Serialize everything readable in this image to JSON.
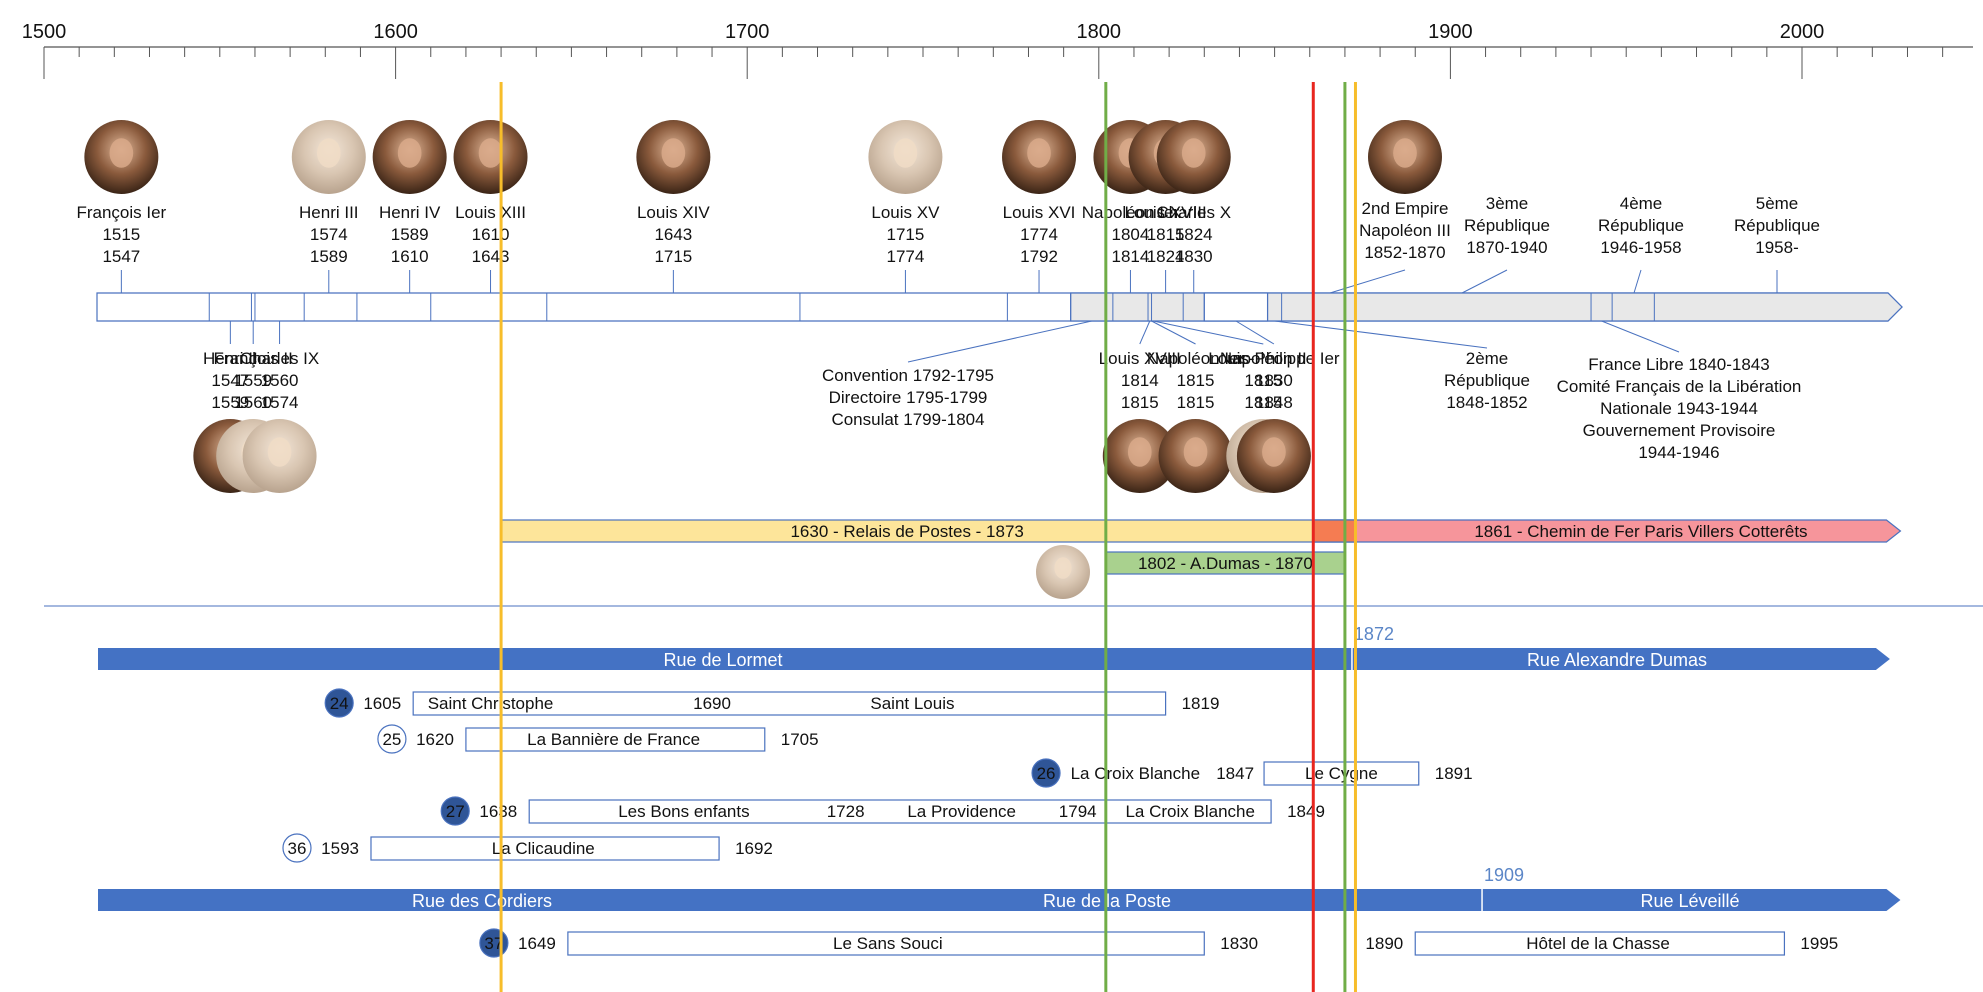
{
  "axis": {
    "ticks": [
      "1500",
      "1600",
      "1700",
      "1800",
      "1900",
      "2000"
    ]
  },
  "colors": {
    "blue": "#4472c4",
    "outline": "#4a72bf",
    "grey_fill": "#e8e8e8",
    "yellow_fill": "#fde59a",
    "yellow_line": "#f7bd2a",
    "red_fill": "#f6959b",
    "red_line": "#e8261f",
    "orange_fill": "#f57c52",
    "green_fill": "#a9d18e",
    "green_line": "#70ad47"
  },
  "vertical_lines": [
    {
      "x": 1630,
      "color": "#f7bd2a"
    },
    {
      "x": 1802,
      "color": "#70ad47"
    },
    {
      "x": 1861,
      "color": "#e8261f"
    },
    {
      "x": 1870,
      "color": "#70ad47"
    },
    {
      "x": 1873,
      "color": "#f7bd2a"
    }
  ],
  "rulers_top": [
    {
      "name": "François Ier",
      "d1": "1515",
      "d2": "1547",
      "year": 1522
    },
    {
      "name": "Henri III",
      "d1": "1574",
      "d2": "1589",
      "year": 1581
    },
    {
      "name": "Henri IV",
      "d1": "1589",
      "d2": "1610",
      "year": 1604
    },
    {
      "name": "Louis XIII",
      "d1": "1610",
      "d2": "1643",
      "year": 1627
    },
    {
      "name": "Louis XIV",
      "d1": "1643",
      "d2": "1715",
      "year": 1679
    },
    {
      "name": "Louis XV",
      "d1": "1715",
      "d2": "1774",
      "year": 1745
    },
    {
      "name": "Louis XVI",
      "d1": "1774",
      "d2": "1792",
      "year": 1783
    },
    {
      "name": "Napoléon Ier",
      "d1": "1804",
      "d2": "1814",
      "year": 1809
    },
    {
      "name": "Louis XVIII",
      "d1": "1815",
      "d2": "1824",
      "year": 1819
    },
    {
      "name": "Charles X",
      "d1": "1824",
      "d2": "1830",
      "year": 1827
    }
  ],
  "rulers_bottom": [
    {
      "name": "Henri II",
      "d1": "1547",
      "d2": "1559",
      "year": 1553
    },
    {
      "name": "François II",
      "d1": "1559",
      "d2": "1560",
      "year": 1559.5
    },
    {
      "name": "Charles IX",
      "d1": "1560",
      "d2": "1574",
      "year": 1567
    },
    {
      "name": "Louis XVIII",
      "d1": "1814",
      "d2": "1815",
      "year": 1814.5
    },
    {
      "name": "Napoléon Ier",
      "d1": "1815",
      "d2": "1815",
      "year": 1815
    },
    {
      "name": "Napoléon II",
      "d1": "1815",
      "d2": "1815",
      "year": 1815.5
    },
    {
      "name": "Louis-Philippe Ier",
      "d1": "1830",
      "d2": "1848",
      "year": 1839
    }
  ],
  "regimes_top": [
    {
      "l1": "2nd Empire",
      "l2": "Napoléon III",
      "l3": "1852-1870"
    },
    {
      "l1": "3ème",
      "l2": "République",
      "l3": "1870-1940"
    },
    {
      "l1": "4ème",
      "l2": "République",
      "l3": "1946-1958"
    },
    {
      "l1": "5ème",
      "l2": "République",
      "l3": "1958-"
    }
  ],
  "regimes_bottom": [
    {
      "lines": [
        "Convention 1792-1795",
        "Directoire 1795-1799",
        "Consulat 1799-1804"
      ]
    },
    {
      "lines": [
        "2ème",
        "République",
        "1848-1852"
      ]
    },
    {
      "lines": [
        "France Libre 1840-1843",
        "Comité Français de la Libération",
        "Nationale 1943-1944",
        "Gouvernement Provisoire",
        "1944-1946"
      ]
    }
  ],
  "reign_bar": {
    "start": 1515,
    "end": 2028,
    "dividers": [
      1547,
      1559,
      1560,
      1574,
      1589,
      1610,
      1643,
      1715,
      1774,
      1792,
      1804,
      1814,
      1815,
      1824,
      1830,
      1848,
      1852,
      1870,
      1940,
      1946,
      1958
    ],
    "grey_from": 1792
  },
  "bars": {
    "relais": {
      "label": "1630 - Relais de Postes - 1873",
      "start": 1630,
      "end": 1873
    },
    "chemin": {
      "label": "1861 - Chemin de Fer Paris  Villers Cotterêts",
      "start": 1861,
      "end": 2028
    },
    "dumas": {
      "label": "1802 - A.Dumas - 1870",
      "start": 1802,
      "end": 1870
    }
  },
  "streets": [
    {
      "from": 1515,
      "to": 2025,
      "split": "1872",
      "split_year": 1872,
      "left": "Rue de Lormet",
      "right": "Rue Alexandre Dumas"
    },
    {
      "from": 1515,
      "to": 2028,
      "split": "1909",
      "split_year": 1909,
      "left_a": "Rue des Cordiers",
      "left_b": "Rue de la Poste",
      "right": "Rue Léveillé"
    }
  ],
  "houses": [
    {
      "num": "24",
      "filled": true,
      "start": "1605",
      "end": "1819",
      "start_y": 1605,
      "end_y": 1819,
      "segs": [
        {
          "t": "Saint Christophe",
          "y": 1627
        },
        {
          "t": "1690",
          "y": 1690
        },
        {
          "t": "Saint Louis",
          "y": 1747
        }
      ]
    },
    {
      "num": "25",
      "filled": false,
      "start": "1620",
      "end": "1705",
      "start_y": 1620,
      "end_y": 1705,
      "segs": [
        {
          "t": "La Bannière de France",
          "y": 1662
        }
      ]
    },
    {
      "num": "26",
      "filled": true,
      "prefix": "La Croix Blanche",
      "start": "1847",
      "end": "1891",
      "start_y": 1847,
      "end_y": 1891,
      "segs": [
        {
          "t": "Le Cygne",
          "y": 1869
        }
      ]
    },
    {
      "num": "27",
      "filled": true,
      "start": "1638",
      "end": "1849",
      "start_y": 1638,
      "end_y": 1849,
      "segs": [
        {
          "t": "Les Bons enfants",
          "y": 1682
        },
        {
          "t": "1728",
          "y": 1728
        },
        {
          "t": "La Providence",
          "y": 1761
        },
        {
          "t": "1794",
          "y": 1794
        },
        {
          "t": "La Croix Blanche",
          "y": 1826
        }
      ]
    },
    {
      "num": "36",
      "filled": false,
      "start": "1593",
      "end": "1692",
      "start_y": 1593,
      "end_y": 1692,
      "segs": [
        {
          "t": "La Clicaudine",
          "y": 1642
        }
      ]
    },
    {
      "num": "37",
      "filled": true,
      "start": "1649",
      "end": "1830",
      "start_y": 1649,
      "end_y": 1830,
      "segs": [
        {
          "t": "Le Sans Souci",
          "y": 1740
        }
      ]
    },
    {
      "num": "",
      "filled": false,
      "start": "1890",
      "end": "1995",
      "start_y": 1890,
      "end_y": 1995,
      "segs": [
        {
          "t": "Hôtel de la Chasse",
          "y": 1942
        }
      ]
    }
  ]
}
